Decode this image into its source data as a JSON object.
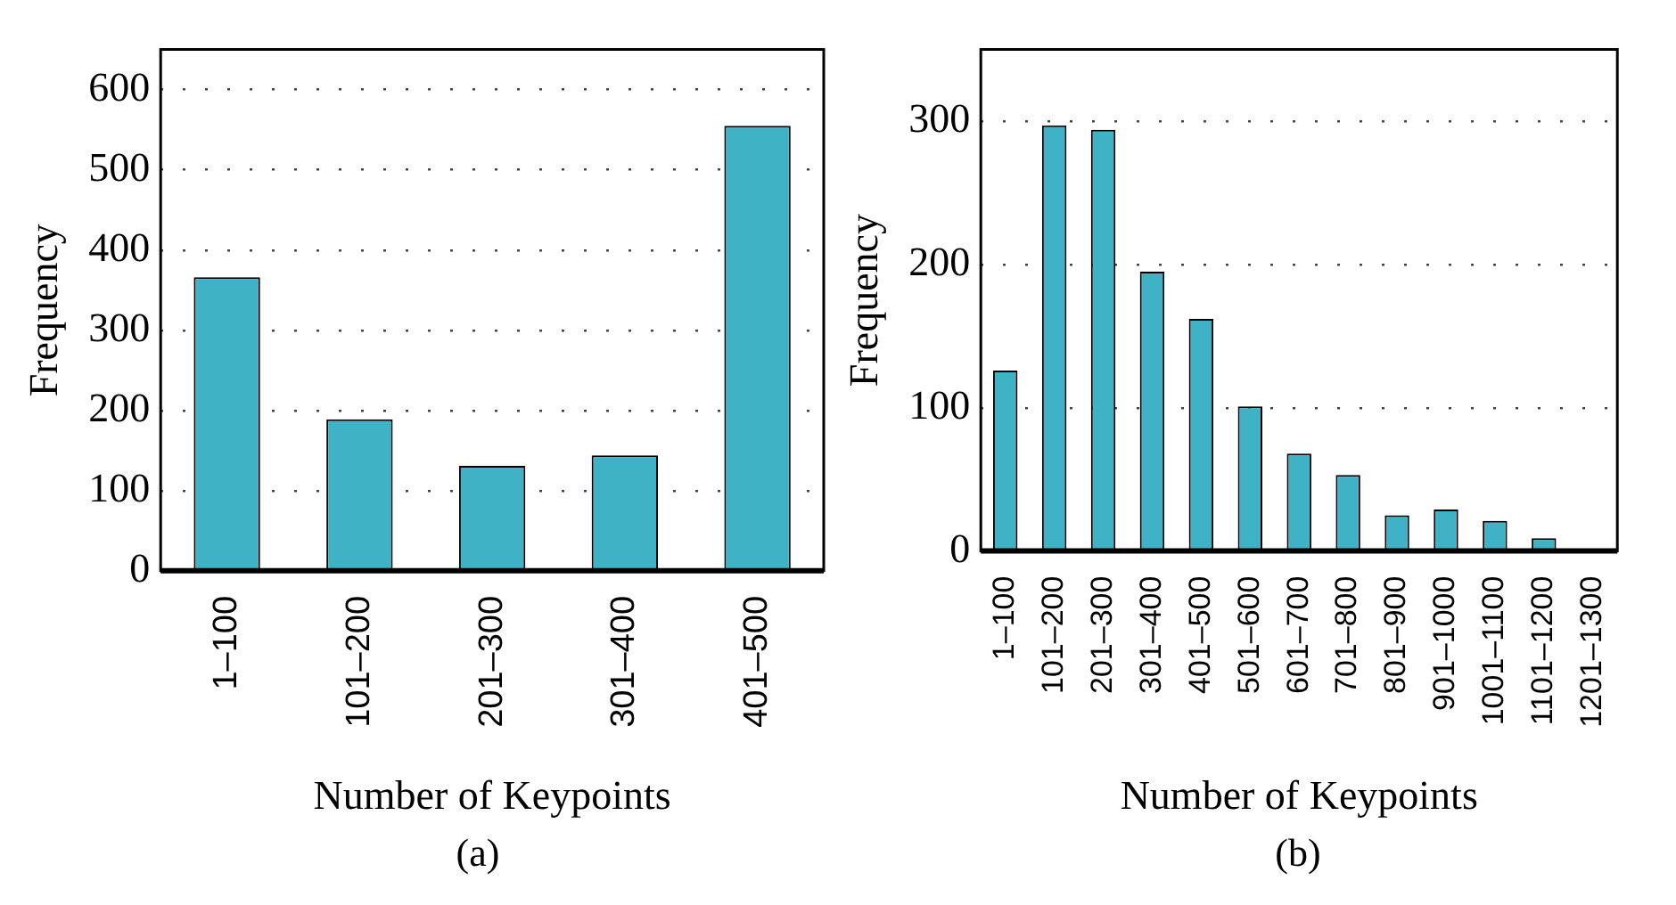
{
  "chart_data": [
    {
      "type": "bar",
      "categories": [
        "1–100",
        "101–200",
        "201–300",
        "301–400",
        "401–500"
      ],
      "values": [
        366,
        189,
        131,
        144,
        555
      ],
      "color": "#3fb3c5",
      "xlabel": "Number of Keypoints",
      "ylabel": "Frequency",
      "ylim": [
        0,
        650
      ],
      "yticks": [
        0,
        100,
        200,
        300,
        400,
        500,
        600
      ],
      "grid": "y",
      "annotations": [
        "(a)"
      ]
    },
    {
      "type": "bar",
      "categories": [
        "1–100",
        "101–200",
        "201–300",
        "301–400",
        "401–500",
        "501–600",
        "601–700",
        "701–800",
        "801–900",
        "901–1000",
        "1001–1100",
        "1101–1200",
        "1201–1300"
      ],
      "values": [
        126,
        297,
        294,
        195,
        162,
        101,
        68,
        53,
        25,
        29,
        21,
        9,
        1
      ],
      "color": "#3fb3c5",
      "xlabel": "Number of Keypoints",
      "ylabel": "Frequency",
      "ylim": [
        0,
        350
      ],
      "yticks": [
        0,
        100,
        200,
        300
      ],
      "grid": "y",
      "annotations": [
        "(b)"
      ]
    }
  ]
}
